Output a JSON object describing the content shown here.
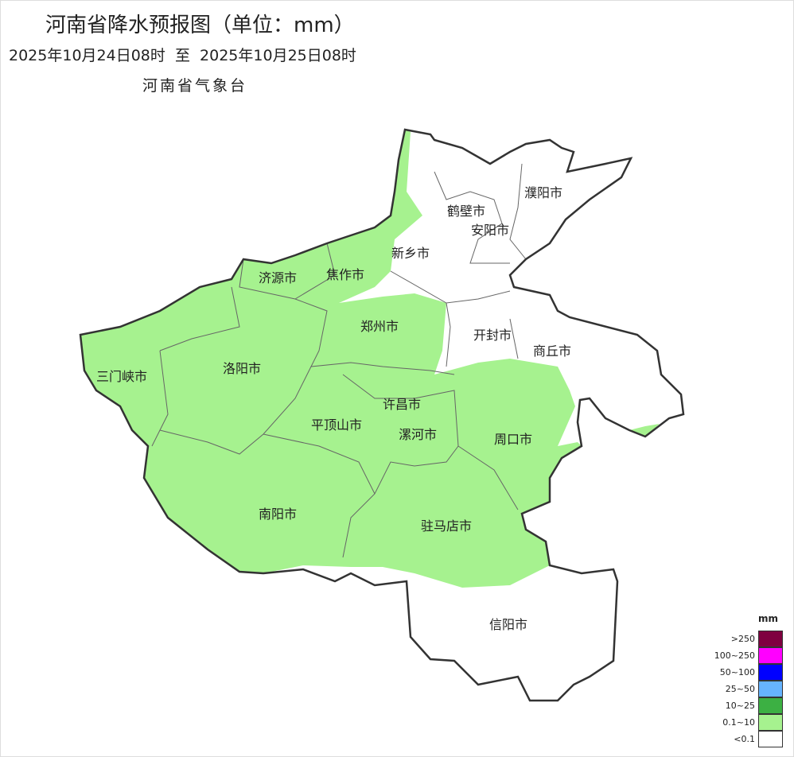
{
  "header": {
    "title": "河南省降水预报图（单位：mm）",
    "period": "2025年10月24日08时  至  2025年10月25日08时",
    "agency": "河南省气象台"
  },
  "map": {
    "region": "河南省",
    "cities": [
      {
        "name": "濮阳市",
        "category": "<0.1"
      },
      {
        "name": "鹤壁市",
        "category": "<0.1"
      },
      {
        "name": "安阳市",
        "category": "<0.1"
      },
      {
        "name": "新乡市",
        "category": "0.1~10"
      },
      {
        "name": "济源市",
        "category": "0.1~10"
      },
      {
        "name": "焦作市",
        "category": "0.1~10"
      },
      {
        "name": "郑州市",
        "category": "0.1~10"
      },
      {
        "name": "开封市",
        "category": "<0.1"
      },
      {
        "name": "商丘市",
        "category": "<0.1"
      },
      {
        "name": "三门峡市",
        "category": "0.1~10"
      },
      {
        "name": "洛阳市",
        "category": "0.1~10"
      },
      {
        "name": "许昌市",
        "category": "0.1~10"
      },
      {
        "name": "平顶山市",
        "category": "0.1~10"
      },
      {
        "name": "漯河市",
        "category": "0.1~10"
      },
      {
        "name": "周口市",
        "category": "0.1~10"
      },
      {
        "name": "南阳市",
        "category": "0.1~10"
      },
      {
        "name": "驻马店市",
        "category": "0.1~10"
      },
      {
        "name": "信阳市",
        "category": "<0.1"
      }
    ]
  },
  "legend": {
    "unit": "mm",
    "items": [
      {
        "label": ">250",
        "color": "#7f0040"
      },
      {
        "label": "100~250",
        "color": "#ff00ff"
      },
      {
        "label": "50~100",
        "color": "#0000ff"
      },
      {
        "label": "25~50",
        "color": "#66b3ff"
      },
      {
        "label": "10~25",
        "color": "#3cb043"
      },
      {
        "label": "0.1~10",
        "color": "#a6f28f"
      },
      {
        "label": "<0.1",
        "color": "#ffffff"
      }
    ]
  }
}
